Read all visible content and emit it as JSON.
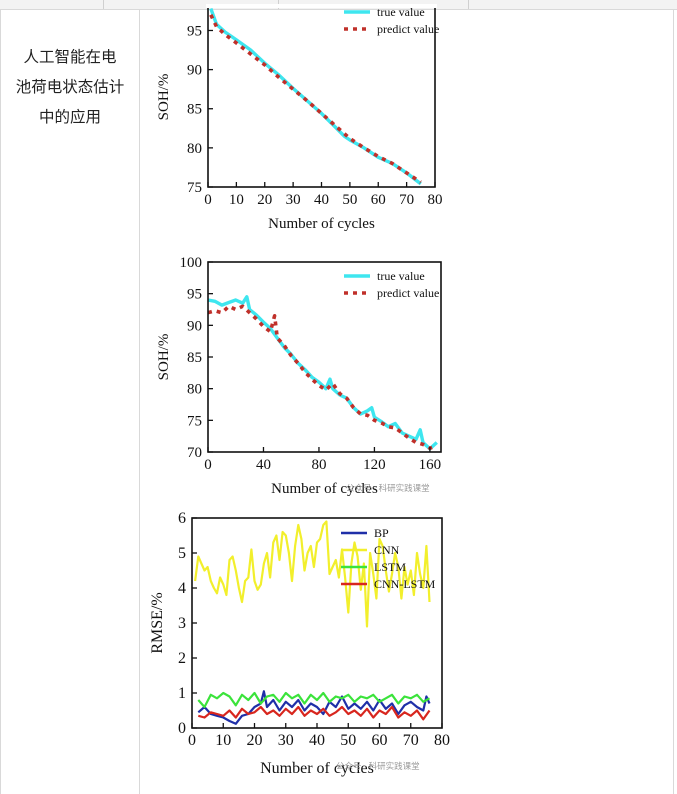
{
  "page": {
    "left_caption": "人工智能在电池荷电状态估计中的应用"
  },
  "chart_data": [
    {
      "type": "line",
      "title": "",
      "xlabel": "Number of cycles",
      "ylabel": "SOH/%",
      "xlim": [
        0,
        80
      ],
      "ylim": [
        75,
        98
      ],
      "xticks": [
        0,
        10,
        20,
        30,
        40,
        50,
        60,
        70,
        80
      ],
      "yticks": [
        75,
        80,
        85,
        90,
        95
      ],
      "legend": "top-right",
      "series": [
        {
          "name": "true value",
          "color": "#3ee6ef",
          "style": "solid",
          "x": [
            1,
            3,
            6,
            10,
            15,
            20,
            25,
            30,
            35,
            40,
            45,
            48,
            50,
            55,
            60,
            65,
            70,
            75
          ],
          "y": [
            97.8,
            95.8,
            94.8,
            93.8,
            92.5,
            90.8,
            89.3,
            87.6,
            86.0,
            84.4,
            82.6,
            81.5,
            81.0,
            80.0,
            78.8,
            78.0,
            76.8,
            75.4
          ]
        },
        {
          "name": "predict value",
          "color": "#c0302a",
          "style": "dotted",
          "x": [
            1,
            3,
            6,
            10,
            15,
            20,
            25,
            30,
            35,
            40,
            45,
            50,
            55,
            60,
            65,
            70,
            75
          ],
          "y": [
            97.0,
            95.5,
            94.5,
            93.4,
            92.0,
            90.6,
            89.0,
            87.5,
            86.0,
            84.4,
            82.8,
            81.2,
            80.0,
            78.9,
            78.0,
            76.8,
            75.6
          ]
        }
      ]
    },
    {
      "type": "line",
      "title": "",
      "xlabel": "Number of cycles",
      "ylabel": "SOH/%",
      "xlim": [
        0,
        168
      ],
      "ylim": [
        70,
        100
      ],
      "xticks": [
        0,
        40,
        80,
        120,
        160
      ],
      "yticks": [
        70,
        75,
        80,
        85,
        90,
        95,
        100
      ],
      "legend": "top-right",
      "watermark": "公众号 · 科研实践课堂",
      "series": [
        {
          "name": "true value",
          "color": "#3ee6ef",
          "style": "solid",
          "x": [
            0,
            5,
            10,
            15,
            20,
            25,
            28,
            30,
            35,
            40,
            45,
            50,
            55,
            60,
            65,
            70,
            75,
            80,
            85,
            88,
            90,
            95,
            100,
            105,
            110,
            115,
            118,
            120,
            125,
            130,
            135,
            140,
            145,
            150,
            153,
            155,
            160,
            165
          ],
          "y": [
            94,
            93.8,
            93.2,
            93.6,
            94.0,
            93.5,
            94.5,
            92.5,
            91.6,
            90.5,
            89.5,
            88.0,
            86.5,
            85.4,
            84.0,
            83.0,
            81.8,
            81.0,
            80.0,
            81.5,
            80.0,
            79.0,
            78.5,
            77.0,
            76.0,
            76.5,
            77.0,
            75.5,
            74.8,
            74.0,
            74.5,
            73.0,
            72.5,
            72.0,
            73.5,
            71.5,
            70.5,
            71.5
          ]
        },
        {
          "name": "predict value",
          "color": "#c0302a",
          "style": "dotted",
          "x": [
            0,
            5,
            10,
            15,
            20,
            25,
            30,
            35,
            40,
            45,
            48,
            50,
            55,
            60,
            65,
            70,
            75,
            80,
            85,
            90,
            95,
            100,
            105,
            110,
            115,
            120,
            125,
            130,
            135,
            140,
            145,
            150,
            155,
            160,
            165
          ],
          "y": [
            92.0,
            92.3,
            92.0,
            93.0,
            92.5,
            93.0,
            92.0,
            91.0,
            89.8,
            89.0,
            91.5,
            88.0,
            86.8,
            85.2,
            84.0,
            82.6,
            81.5,
            80.5,
            79.8,
            80.8,
            79.2,
            78.5,
            77.0,
            76.0,
            75.8,
            75.0,
            74.6,
            74.0,
            73.8,
            73.0,
            72.2,
            71.5,
            71.2,
            70.6,
            71.0
          ]
        }
      ]
    },
    {
      "type": "line",
      "title": "",
      "xlabel": "Number of cycles",
      "ylabel": "RMSE/%",
      "xlim": [
        0,
        80
      ],
      "ylim": [
        0,
        6
      ],
      "xticks": [
        0,
        10,
        20,
        30,
        40,
        50,
        60,
        70,
        80
      ],
      "yticks": [
        0,
        1,
        2,
        3,
        4,
        5,
        6
      ],
      "legend": "top-right",
      "watermark": "公众号 · 科研实践课堂",
      "series": [
        {
          "name": "BP",
          "color": "#1f2fa8",
          "x": [
            2,
            4,
            6,
            8,
            10,
            12,
            14,
            16,
            18,
            20,
            22,
            23,
            24,
            26,
            28,
            30,
            32,
            34,
            36,
            38,
            40,
            42,
            44,
            46,
            48,
            50,
            52,
            54,
            56,
            58,
            60,
            62,
            64,
            66,
            68,
            70,
            72,
            74,
            75,
            76
          ],
          "y": [
            0.45,
            0.6,
            0.4,
            0.35,
            0.3,
            0.2,
            0.12,
            0.35,
            0.4,
            0.6,
            0.7,
            1.05,
            0.6,
            0.8,
            0.5,
            0.75,
            0.6,
            0.8,
            0.5,
            0.7,
            0.6,
            0.4,
            0.75,
            0.6,
            0.9,
            0.55,
            0.7,
            0.55,
            0.75,
            0.5,
            0.8,
            0.55,
            0.7,
            0.4,
            0.65,
            0.75,
            0.6,
            0.5,
            0.9,
            0.7
          ]
        },
        {
          "name": "CNN",
          "color": "#f2ef2c",
          "x": [
            1,
            2,
            3,
            4,
            5,
            6,
            7,
            8,
            9,
            10,
            11,
            12,
            13,
            14,
            15,
            16,
            17,
            18,
            19,
            20,
            21,
            22,
            23,
            24,
            25,
            26,
            27,
            28,
            29,
            30,
            31,
            32,
            33,
            34,
            35,
            36,
            37,
            38,
            39,
            40,
            41,
            42,
            43,
            44,
            45,
            46,
            47,
            48,
            49,
            50,
            51,
            52,
            53,
            54,
            55,
            56,
            57,
            58,
            59,
            60,
            61,
            62,
            63,
            64,
            65,
            66,
            67,
            68,
            69,
            70,
            71,
            72,
            73,
            74,
            75,
            76
          ],
          "y": [
            4.2,
            4.9,
            4.7,
            4.5,
            4.6,
            4.2,
            4.0,
            3.85,
            4.3,
            4.1,
            3.8,
            4.8,
            4.9,
            4.5,
            4.0,
            3.6,
            4.2,
            4.3,
            5.1,
            4.2,
            3.95,
            4.1,
            4.7,
            5.0,
            4.3,
            5.3,
            5.5,
            4.8,
            5.6,
            5.5,
            5.0,
            4.2,
            5.2,
            5.8,
            5.4,
            4.5,
            5.0,
            5.2,
            4.6,
            5.3,
            5.4,
            5.8,
            5.9,
            4.4,
            4.6,
            4.8,
            4.3,
            5.1,
            4.3,
            3.3,
            4.7,
            5.3,
            4.9,
            3.95,
            4.7,
            2.9,
            5.0,
            4.4,
            3.7,
            5.4,
            5.2,
            4.5,
            3.9,
            4.4,
            5.0,
            4.6,
            3.7,
            4.6,
            4.1,
            4.5,
            3.8,
            5.0,
            4.4,
            4.0,
            5.2,
            3.6
          ]
        },
        {
          "name": "LSTM",
          "color": "#3be33b",
          "x": [
            2,
            4,
            6,
            8,
            10,
            12,
            14,
            16,
            18,
            20,
            22,
            24,
            26,
            28,
            30,
            32,
            34,
            36,
            38,
            40,
            42,
            44,
            46,
            48,
            50,
            52,
            54,
            56,
            58,
            60,
            62,
            64,
            66,
            68,
            70,
            72,
            74,
            76
          ],
          "y": [
            0.8,
            0.6,
            0.95,
            0.85,
            1.0,
            0.9,
            0.65,
            0.95,
            0.8,
            1.0,
            0.7,
            0.9,
            0.95,
            0.75,
            1.0,
            0.85,
            0.95,
            0.7,
            0.95,
            0.8,
            1.0,
            0.75,
            0.9,
            0.85,
            0.95,
            0.75,
            0.9,
            0.85,
            0.95,
            0.75,
            0.85,
            0.95,
            0.7,
            0.9,
            0.85,
            0.95,
            0.75,
            0.85
          ]
        },
        {
          "name": "CNN-LSTM",
          "color": "#d8261e",
          "x": [
            2,
            4,
            6,
            8,
            10,
            12,
            14,
            16,
            18,
            20,
            22,
            24,
            26,
            28,
            30,
            32,
            34,
            36,
            38,
            40,
            42,
            44,
            46,
            48,
            50,
            52,
            54,
            56,
            58,
            60,
            62,
            64,
            66,
            68,
            70,
            72,
            74,
            76
          ],
          "y": [
            0.35,
            0.3,
            0.45,
            0.4,
            0.35,
            0.5,
            0.3,
            0.55,
            0.4,
            0.45,
            0.6,
            0.4,
            0.5,
            0.35,
            0.55,
            0.4,
            0.6,
            0.35,
            0.5,
            0.4,
            0.55,
            0.35,
            0.45,
            0.6,
            0.4,
            0.5,
            0.35,
            0.55,
            0.3,
            0.5,
            0.4,
            0.6,
            0.3,
            0.45,
            0.35,
            0.5,
            0.25,
            0.5
          ]
        }
      ]
    }
  ]
}
